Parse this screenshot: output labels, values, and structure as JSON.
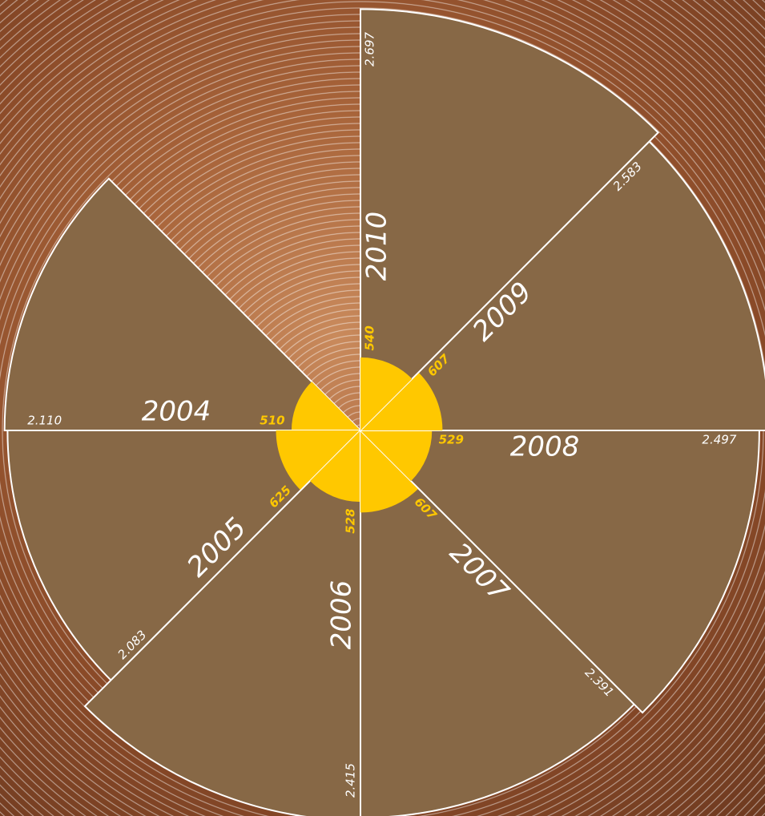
{
  "chart_data": {
    "type": "polar-area",
    "categories": [
      "2004",
      "2005",
      "2006",
      "2007",
      "2008",
      "2009",
      "2010"
    ],
    "series": [
      {
        "color": "#876846",
        "values": [
          2110,
          2083,
          2415,
          2391,
          2497,
          2583,
          2697
        ],
        "value_labels": [
          "2.110",
          "2.083",
          "2.415",
          "2.391",
          "2.497",
          "2.583",
          "2.697"
        ]
      },
      {
        "color": "#ffc800",
        "values": [
          510,
          625,
          528,
          607,
          529,
          607,
          540
        ]
      }
    ],
    "rlim": [
      -1100,
      2700
    ],
    "r2lim": [
      0,
      640
    ]
  }
}
